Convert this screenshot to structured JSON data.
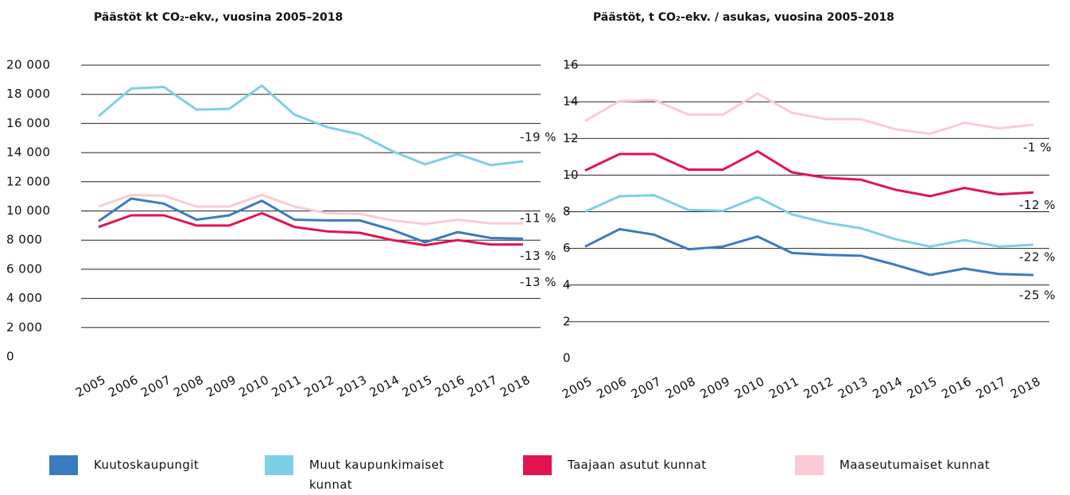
{
  "chart_data": [
    {
      "type": "line",
      "title": "Päästöt kt CO₂-ekv., vuosina 2005–2018",
      "categories": [
        "2005",
        "2006",
        "2007",
        "2008",
        "2009",
        "2010",
        "2011",
        "2012",
        "2013",
        "2014",
        "2015",
        "2016",
        "2017",
        "2018"
      ],
      "ylim": [
        0,
        20000
      ],
      "yticks": [
        0,
        {
          "value": 2000,
          "label": "2 000"
        },
        {
          "value": 4000,
          "label": "4 000"
        },
        {
          "value": 6000,
          "label": "6 000"
        },
        {
          "value": 8000,
          "label": "8 000"
        },
        {
          "value": 10000,
          "label": "10 000"
        },
        {
          "value": 12000,
          "label": "12 000"
        },
        {
          "value": 14000,
          "label": "14 000"
        },
        {
          "value": 16000,
          "label": "16 000"
        },
        {
          "value": 18000,
          "label": "18 000"
        },
        {
          "value": 20000,
          "label": "20 000"
        }
      ],
      "grid": true,
      "series": [
        {
          "name": "Kuutoskaupungit",
          "color": "#3a7bbf",
          "change": "-13 %",
          "values": [
            9300,
            10850,
            10500,
            9400,
            9700,
            10700,
            9400,
            9350,
            9350,
            8700,
            7850,
            8550,
            8150,
            8100
          ]
        },
        {
          "name": "Muut kaupunkimaiset kunnat",
          "color": "#7dcfe8",
          "change": "-19 %",
          "values": [
            16500,
            18400,
            18500,
            16950,
            17000,
            18600,
            16600,
            15750,
            15250,
            14100,
            13200,
            13900,
            13150,
            13400
          ]
        },
        {
          "name": "Taajaan asutut kunnat",
          "color": "#e2134f",
          "change": "-13 %",
          "values": [
            8900,
            9700,
            9700,
            9000,
            9000,
            9850,
            8900,
            8600,
            8500,
            8000,
            7650,
            8000,
            7700,
            7700
          ]
        },
        {
          "name": "Maaseutumaiset kunnat",
          "color": "#f9cbd7",
          "change": "-11 %",
          "values": [
            10300,
            11100,
            11050,
            10300,
            10300,
            11100,
            10300,
            9850,
            9800,
            9350,
            9100,
            9400,
            9150,
            9150
          ]
        }
      ]
    },
    {
      "type": "line",
      "title": "Päästöt, t CO₂-ekv. / asukas, vuosina 2005–2018",
      "categories": [
        "2005",
        "2006",
        "2007",
        "2008",
        "2009",
        "2010",
        "2011",
        "2012",
        "2013",
        "2014",
        "2015",
        "2016",
        "2017",
        "2018"
      ],
      "ylim": [
        0,
        16
      ],
      "yticks": [
        0,
        2,
        4,
        6,
        8,
        10,
        12,
        14,
        16
      ],
      "grid": true,
      "series": [
        {
          "name": "Kuutoskaupungit",
          "color": "#3a7bbf",
          "change": "-25 %",
          "values": [
            6.1,
            7.05,
            6.75,
            5.95,
            6.1,
            6.65,
            5.75,
            5.65,
            5.6,
            5.1,
            4.55,
            4.9,
            4.6,
            4.55
          ]
        },
        {
          "name": "Muut kaupunkimaiset kunnat",
          "color": "#7dcfe8",
          "change": "-22 %",
          "values": [
            8.0,
            8.85,
            8.9,
            8.1,
            8.05,
            8.8,
            7.85,
            7.4,
            7.1,
            6.5,
            6.1,
            6.45,
            6.1,
            6.2
          ]
        },
        {
          "name": "Taajaan asutut kunnat",
          "color": "#e2134f",
          "change": "-12 %",
          "values": [
            10.25,
            11.15,
            11.15,
            10.3,
            10.3,
            11.3,
            10.15,
            9.85,
            9.75,
            9.2,
            8.85,
            9.3,
            8.95,
            9.05
          ]
        },
        {
          "name": "Maaseutumaiset kunnat",
          "color": "#f9cbd7",
          "change": "-1 %",
          "values": [
            12.95,
            14.05,
            14.1,
            13.3,
            13.3,
            14.45,
            13.4,
            13.05,
            13.05,
            12.5,
            12.25,
            12.85,
            12.55,
            12.75
          ]
        }
      ]
    }
  ]
}
